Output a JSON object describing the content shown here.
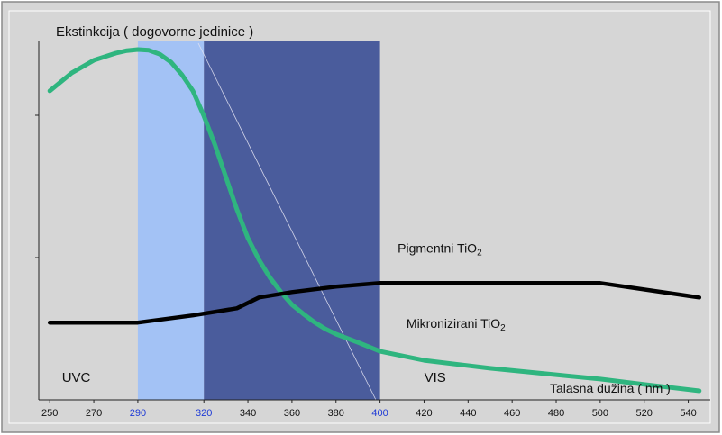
{
  "chart_data": {
    "type": "line",
    "ylabel": "Ekstinkcija ( dogovorne jedinice )",
    "xlabel": "Talasna dužina ( nm )",
    "xlim": [
      245,
      550
    ],
    "ylim": [
      0,
      100
    ],
    "x_ticks": [
      "250",
      "270",
      "290",
      "320",
      "340",
      "360",
      "380",
      "400",
      "420",
      "440",
      "460",
      "480",
      "500",
      "520",
      "540"
    ],
    "highlight_ticks": [
      "290",
      "320",
      "400"
    ],
    "bands": [
      {
        "from": 290,
        "to": 320,
        "color": "#a3c2f5"
      },
      {
        "from": 320,
        "to": 400,
        "color": "#4a5c9c"
      }
    ],
    "region_labels": [
      {
        "text": "UVC",
        "x": 262,
        "y": 5
      },
      {
        "text": "VIS",
        "x": 425,
        "y": 5
      }
    ],
    "series": [
      {
        "name": "Mikronizirani TiO2",
        "label": "Mikronizirani TiO",
        "sub": "2",
        "label_at": {
          "x": 412,
          "y": 20
        },
        "color": "#2fb57f",
        "x": [
          250,
          260,
          270,
          280,
          285,
          290,
          295,
          300,
          305,
          310,
          315,
          320,
          325,
          330,
          335,
          340,
          345,
          350,
          355,
          360,
          365,
          370,
          375,
          380,
          390,
          400,
          420,
          450,
          480,
          500,
          520,
          545
        ],
        "y": [
          86,
          91,
          94.5,
          96.5,
          97.2,
          97.5,
          97.3,
          96.2,
          94,
          90.5,
          86,
          79,
          71,
          62,
          53,
          45,
          39,
          34,
          30,
          26.5,
          24,
          21.7,
          19.8,
          18.3,
          16,
          13.5,
          11,
          8.8,
          7,
          5.8,
          4.3,
          2.5
        ]
      },
      {
        "name": "Pigmentni TiO2",
        "label": "Pigmentni TiO",
        "sub": "2",
        "label_at": {
          "x": 408,
          "y": 41
        },
        "color": "#000000",
        "x": [
          250,
          290,
          315,
          335,
          345,
          360,
          380,
          400,
          440,
          500,
          545
        ],
        "y": [
          21.5,
          21.5,
          23.5,
          25.5,
          28.5,
          30,
          31.5,
          32.5,
          32.5,
          32.5,
          28.5
        ]
      }
    ]
  }
}
